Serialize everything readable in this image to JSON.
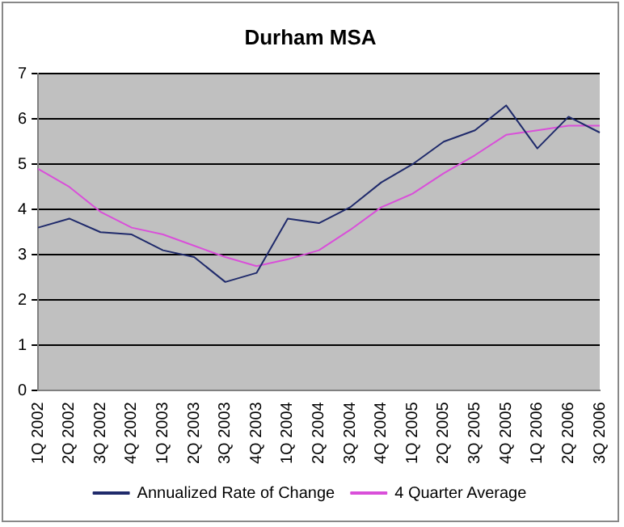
{
  "chart_data": {
    "type": "line",
    "title": "Durham MSA",
    "categories": [
      "1Q 2002",
      "2Q 2002",
      "3Q 2002",
      "4Q 2002",
      "1Q 2003",
      "2Q 2003",
      "3Q 2003",
      "4Q 2003",
      "1Q 2004",
      "2Q 2004",
      "3Q 2004",
      "4Q 2004",
      "1Q 2005",
      "2Q 2005",
      "3Q 2005",
      "4Q 2005",
      "1Q 2006",
      "2Q 2006",
      "3Q 2006"
    ],
    "series": [
      {
        "name": "Annualized Rate of Change",
        "color": "#1f2a6b",
        "values": [
          3.6,
          3.8,
          3.5,
          3.45,
          3.1,
          2.95,
          2.4,
          2.6,
          3.8,
          3.7,
          4.05,
          4.6,
          5.0,
          5.5,
          5.75,
          6.3,
          5.35,
          6.05,
          5.7
        ]
      },
      {
        "name": "4 Quarter Average",
        "color": "#d94fd9",
        "values": [
          4.9,
          4.5,
          3.95,
          3.6,
          3.45,
          3.2,
          2.95,
          2.75,
          2.9,
          3.1,
          3.55,
          4.05,
          4.35,
          4.8,
          5.2,
          5.65,
          5.75,
          5.85,
          5.85
        ]
      }
    ],
    "ylim": [
      0,
      7
    ],
    "yticks": [
      0,
      1,
      2,
      3,
      4,
      5,
      6,
      7
    ],
    "grid": "y",
    "legend": "bottom",
    "marker": "none",
    "line_style": "solid"
  }
}
